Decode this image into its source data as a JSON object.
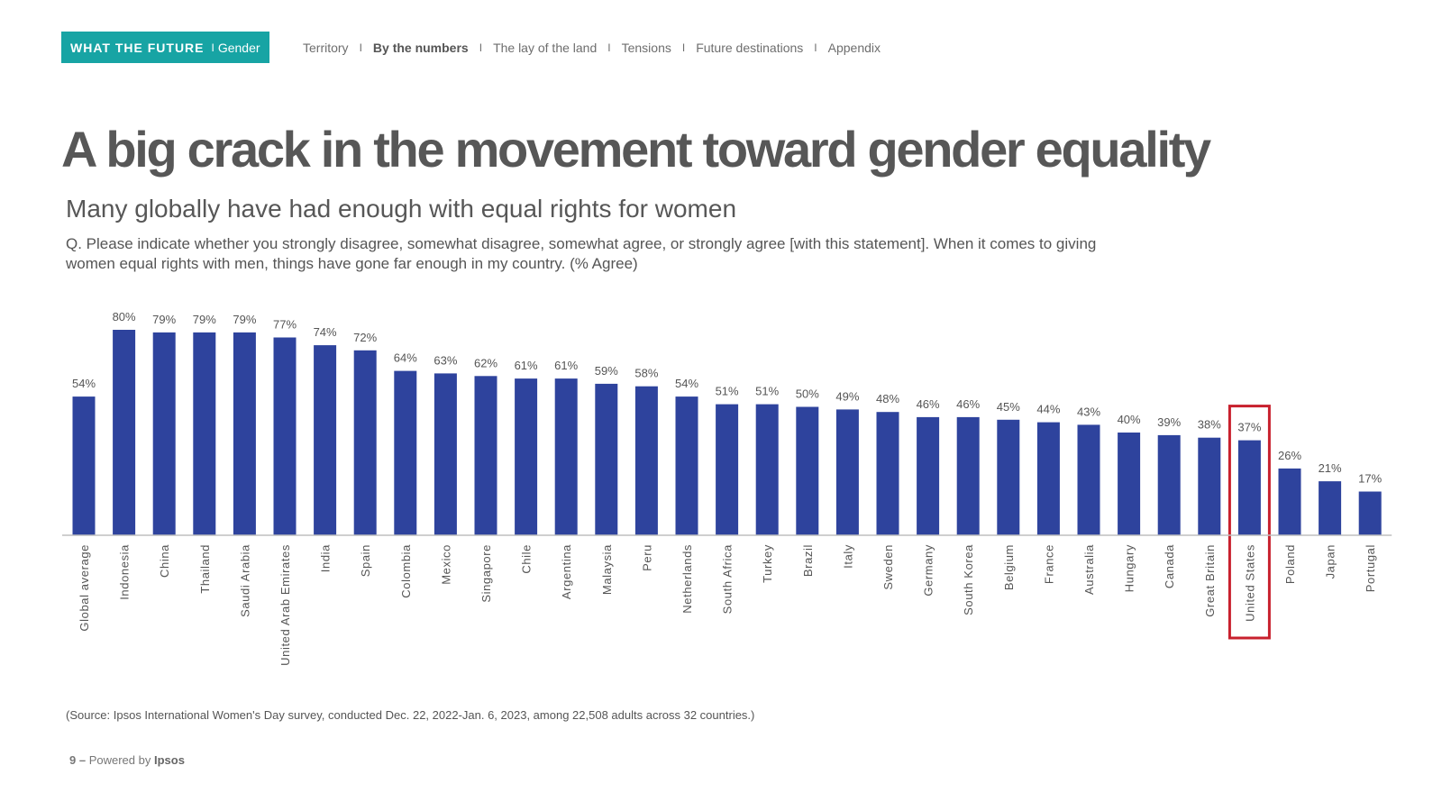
{
  "header": {
    "brand": "WHAT THE FUTURE",
    "brand_separator": "I",
    "brand_section": "Gender",
    "nav_separator": "I",
    "nav": [
      {
        "label": "Territory",
        "active": false
      },
      {
        "label": "By the numbers",
        "active": true
      },
      {
        "label": "The lay of the land",
        "active": false
      },
      {
        "label": "Tensions",
        "active": false
      },
      {
        "label": "Future destinations",
        "active": false
      },
      {
        "label": "Appendix",
        "active": false
      }
    ]
  },
  "title": "A big crack in the movement toward gender equality",
  "subtitle": "Many globally have had enough with equal rights for women",
  "question": "Q. Please indicate whether you strongly disagree, somewhat disagree, somewhat agree, or strongly agree [with this statement]. When it comes to giving women equal rights with men, things have gone far enough in my country. (% Agree)",
  "source": "(Source: Ipsos International Women's Day survey, conducted Dec. 22, 2022-Jan. 6, 2023, among 22,508 adults across 32 countries.)",
  "footer": {
    "page_number": "9 –",
    "powered_by": "Powered by",
    "brand": "Ipsos"
  },
  "colors": {
    "brand_teal": "#17A4A4",
    "bar": "#2E439D",
    "highlight": "#C8202D",
    "title": "#575757"
  },
  "chart_data": {
    "type": "bar",
    "categories": [
      "Global average",
      "Indonesia",
      "China",
      "Thailand",
      "Saudi Arabia",
      "United Arab Emirates",
      "India",
      "Spain",
      "Colombia",
      "Mexico",
      "Singapore",
      "Chile",
      "Argentina",
      "Malaysia",
      "Peru",
      "Netherlands",
      "South Africa",
      "Turkey",
      "Brazil",
      "Italy",
      "Sweden",
      "Germany",
      "South Korea",
      "Belgium",
      "France",
      "Australia",
      "Hungary",
      "Canada",
      "Great Britain",
      "United States",
      "Poland",
      "Japan",
      "Portugal"
    ],
    "values": [
      54,
      80,
      79,
      79,
      79,
      77,
      74,
      72,
      64,
      63,
      62,
      61,
      61,
      59,
      58,
      54,
      51,
      51,
      50,
      49,
      48,
      46,
      46,
      45,
      44,
      43,
      40,
      39,
      38,
      37,
      26,
      21,
      17
    ],
    "value_suffix": "%",
    "highlight_category": "United States",
    "ylim": [
      0,
      80
    ],
    "grid": false,
    "legend": "none",
    "xlabel": "",
    "ylabel": ""
  }
}
